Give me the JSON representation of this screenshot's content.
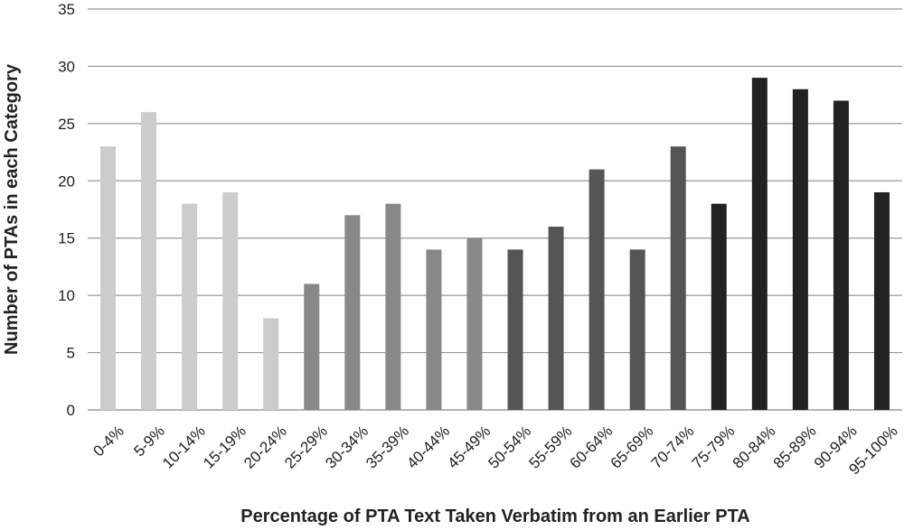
{
  "chart_data": {
    "type": "bar",
    "title": "",
    "xlabel": "Percentage of PTA Text Taken Verbatim from an Earlier PTA",
    "ylabel": "Number of PTAs in each Category",
    "ylim": [
      0,
      35
    ],
    "yticks": [
      0,
      5,
      10,
      15,
      20,
      25,
      30,
      35
    ],
    "grid": true,
    "legend": "none",
    "categories": [
      "0-4%",
      "5-9%",
      "10-14%",
      "15-19%",
      "20-24%",
      "25-29%",
      "30-34%",
      "35-39%",
      "40-44%",
      "45-49%",
      "50-54%",
      "55-59%",
      "60-64%",
      "65-69%",
      "70-74%",
      "75-79%",
      "80-84%",
      "85-89%",
      "90-94%",
      "95-100%"
    ],
    "values": [
      23,
      26,
      18,
      19,
      8,
      11,
      17,
      18,
      14,
      15,
      14,
      16,
      21,
      14,
      23,
      18,
      29,
      28,
      27,
      19
    ],
    "bar_colors": [
      "#cccccc",
      "#cccccc",
      "#cccccc",
      "#cccccc",
      "#cccccc",
      "#888888",
      "#888888",
      "#888888",
      "#888888",
      "#888888",
      "#555555",
      "#555555",
      "#555555",
      "#555555",
      "#555555",
      "#222222",
      "#222222",
      "#222222",
      "#222222",
      "#222222"
    ]
  }
}
